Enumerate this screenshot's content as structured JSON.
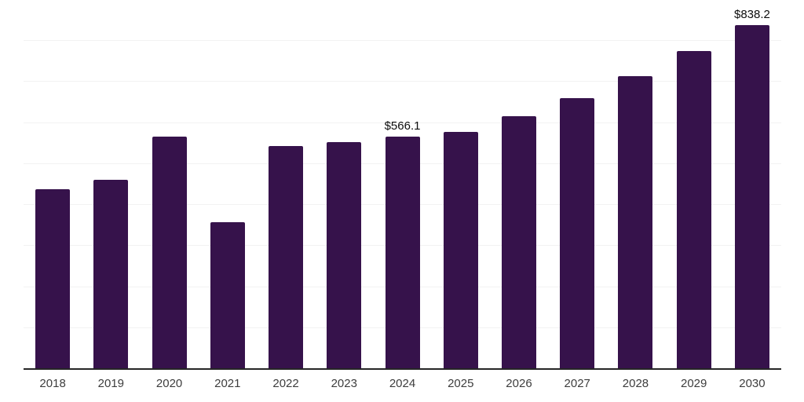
{
  "chart_data": {
    "type": "bar",
    "title": "",
    "xlabel": "",
    "ylabel": "",
    "categories": [
      "2018",
      "2019",
      "2020",
      "2021",
      "2022",
      "2023",
      "2024",
      "2025",
      "2026",
      "2027",
      "2028",
      "2029",
      "2030"
    ],
    "values": [
      438,
      462,
      567,
      358,
      543,
      554,
      566.1,
      578,
      617,
      661,
      714,
      776,
      838.2
    ],
    "data_labels": [
      "",
      "",
      "",
      "",
      "",
      "",
      "$566.1",
      "",
      "",
      "",
      "",
      "",
      "$838.2"
    ],
    "ylim": [
      0,
      900
    ],
    "gridline_step": 100,
    "grid": "horizontal-only",
    "legend": "none",
    "y_axis_ticks_visible": false,
    "colors": {
      "bar": "#36124B",
      "gridline": "#f2f2f2",
      "axis_line": "#262626",
      "x_tick_label": "#3d3d3d",
      "data_label": "#0d0d0d",
      "background": "#ffffff"
    }
  }
}
